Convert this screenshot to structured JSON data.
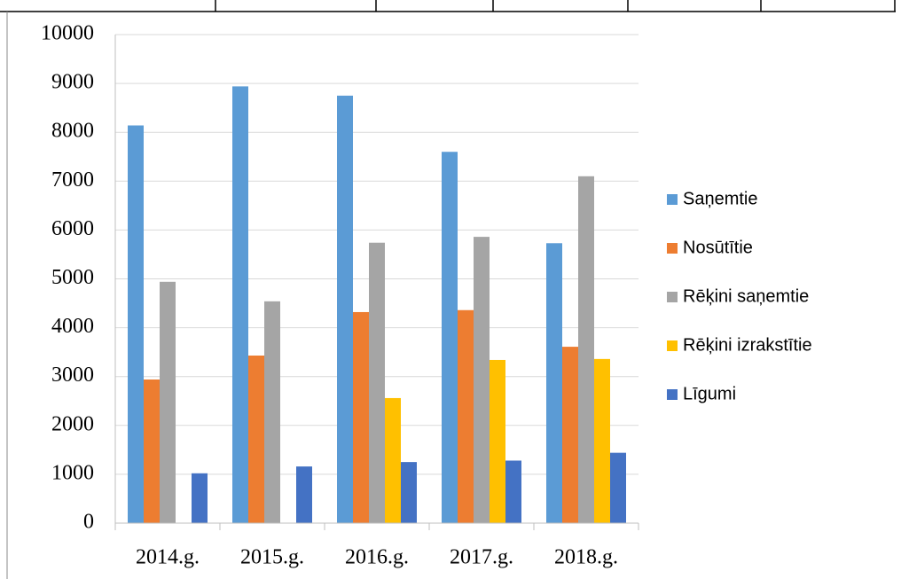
{
  "chart_data": {
    "type": "bar",
    "categories": [
      "2014.g.",
      "2015.g.",
      "2016.g.",
      "2017.g.",
      "2018.g."
    ],
    "series": [
      {
        "name": "Saņemtie",
        "color": "#5b9bd5",
        "values": [
          8140,
          8940,
          8750,
          7600,
          5730
        ]
      },
      {
        "name": "Nosūtītie",
        "color": "#ed7d31",
        "values": [
          2940,
          3430,
          4320,
          4360,
          3610
        ]
      },
      {
        "name": "Rēķini saņemtie",
        "color": "#a5a5a5",
        "values": [
          4940,
          4540,
          5740,
          5860,
          7100
        ]
      },
      {
        "name": "Rēķini izrakstītie",
        "color": "#ffc000",
        "values": [
          null,
          null,
          2560,
          3340,
          3360
        ]
      },
      {
        "name": "Līgumi",
        "color": "#4472c4",
        "values": [
          1020,
          1160,
          1250,
          1280,
          1440
        ]
      }
    ],
    "ylim": [
      0,
      10000
    ],
    "yticks": [
      0,
      1000,
      2000,
      3000,
      4000,
      5000,
      6000,
      7000,
      8000,
      9000,
      10000
    ],
    "grid": true,
    "legend": "right"
  }
}
